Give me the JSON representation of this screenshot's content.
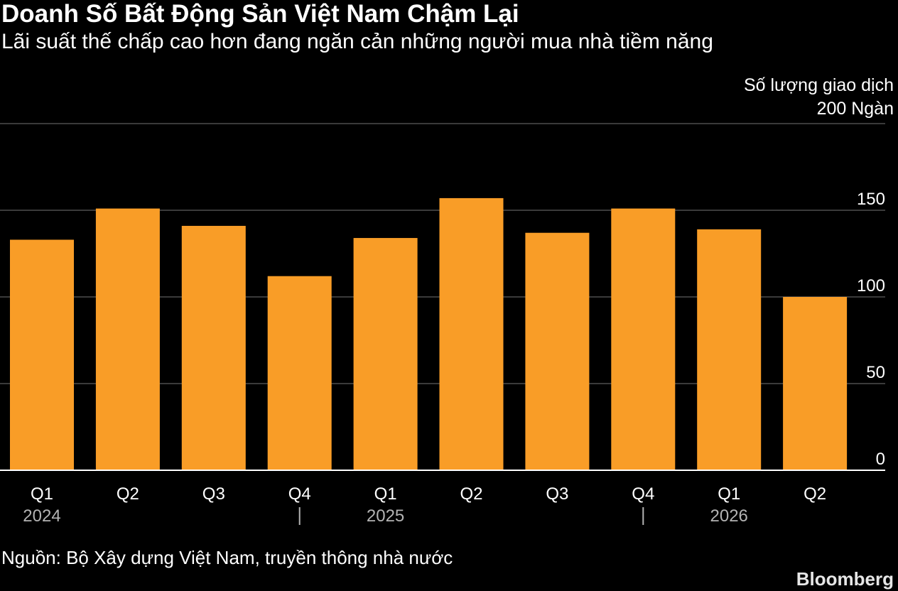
{
  "header": {
    "title": "Doanh Số Bất Động Sản Việt Nam Chậm Lại",
    "subtitle": "Lãi suất thế chấp cao hơn đang ngăn cản những người mua nhà tiềm năng"
  },
  "chart_data": {
    "type": "bar",
    "title": "Doanh Số Bất Động Sản Việt Nam Chậm Lại",
    "subtitle": "Lãi suất thế chấp cao hơn đang ngăn cản những người mua nhà tiềm năng",
    "ylabel": "Số lượng giao dịch",
    "yunit_top_label": "200 Ngàn",
    "ylim": [
      0,
      200
    ],
    "yticks": [
      0,
      50,
      100,
      150,
      200
    ],
    "ytick_labels": [
      "0",
      "50",
      "100",
      "150",
      "200 Ngàn"
    ],
    "grid": true,
    "y_axis_position": "right",
    "categories": [
      "Q1",
      "Q2",
      "Q3",
      "Q4",
      "Q1",
      "Q2",
      "Q3",
      "Q4",
      "Q1",
      "Q2"
    ],
    "year_labels": [
      {
        "label": "2024",
        "at_index": 0
      },
      {
        "label": "2025",
        "at_index": 4
      },
      {
        "label": "2026",
        "at_index": 8
      }
    ],
    "year_separators_after_index": [
      3,
      7
    ],
    "values": [
      133,
      151,
      141,
      112,
      134,
      157,
      137,
      151,
      139,
      100
    ],
    "bar_color": "#f99d27"
  },
  "footer": {
    "source": "Nguồn: Bộ Xây dựng Việt Nam, truyền thông nhà nước",
    "brand": "Bloomberg"
  },
  "colors": {
    "background": "#000000",
    "bar": "#f99d27",
    "grid": "#4d4d4d",
    "axis_text": "#ffffff",
    "year_text": "#b3b3b3"
  }
}
